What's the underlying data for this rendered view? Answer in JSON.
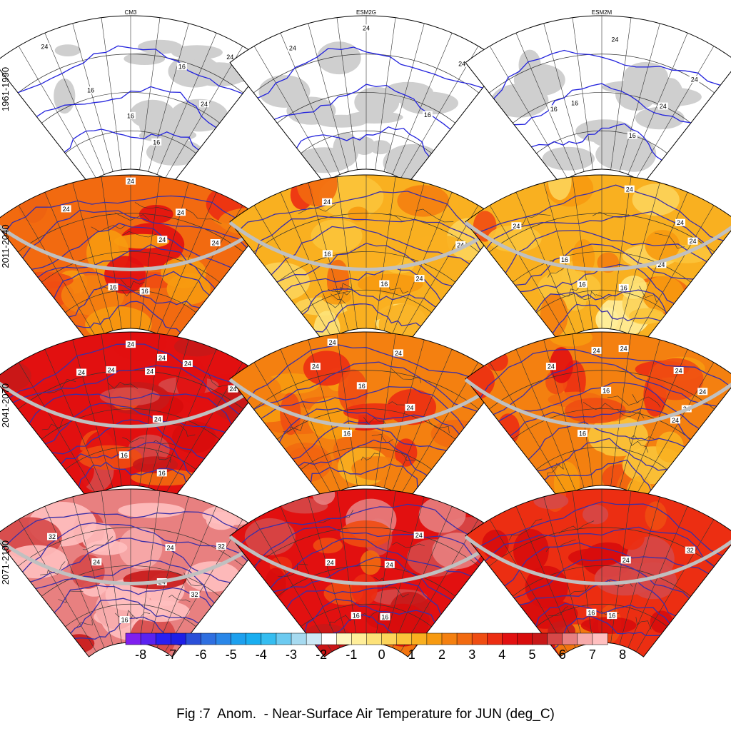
{
  "chart_data": {
    "type": "heatmap",
    "title": "Fig :7  Anom.  - Near-Surface Air Temperature for JUN (deg_C)",
    "columns": [
      "CM3",
      "ESM2G",
      "ESM2M"
    ],
    "rows": [
      "1961-1990",
      "2011-2040",
      "2041-2070",
      "2071-2100"
    ],
    "colorbar": {
      "ticks": [
        "-8",
        "-7",
        "-6",
        "-5",
        "-4",
        "-3",
        "-2",
        "-1",
        "0",
        "1",
        "2",
        "3",
        "4",
        "5",
        "6",
        "7",
        "8"
      ],
      "range": [
        -8,
        8
      ],
      "colors": [
        "#7f1fef",
        "#5a22f0",
        "#2a1ff2",
        "#1e1ee6",
        "#2a4fd8",
        "#2f6fe0",
        "#2a87e8",
        "#1da0ee",
        "#19aef0",
        "#35bdf0",
        "#6ccaf0",
        "#a6daf0",
        "#cde9f6",
        "#ffffff",
        "#fff7c0",
        "#ffee99",
        "#fde278",
        "#fcd45a",
        "#fbc43a",
        "#f9b020",
        "#f79a10",
        "#f48010",
        "#f26a10",
        "#ef4d12",
        "#ec2e12",
        "#e21010",
        "#d80c0c",
        "#c81818",
        "#d64848",
        "#e88080",
        "#f7aaaa",
        "#ffbfbf"
      ]
    },
    "contour_labels": [
      "16",
      "24",
      "32"
    ],
    "panels": [
      {
        "column": "CM3",
        "period": "1961-1990",
        "mean_anomaly": 0,
        "labels": [
          {
            "t": "16",
            "u": 0.5,
            "v": 0.35
          },
          {
            "t": "16",
            "u": 0.7,
            "v": 0.2
          },
          {
            "t": "16",
            "u": 0.3,
            "v": 0.55
          },
          {
            "t": "16",
            "u": 0.72,
            "v": 0.72
          },
          {
            "t": "24",
            "u": 0.88,
            "v": 0.55
          },
          {
            "t": "24",
            "u": 0.88,
            "v": 0.9
          },
          {
            "t": "24",
            "u": 0.18,
            "v": 0.92
          }
        ]
      },
      {
        "column": "ESM2G",
        "period": "1961-1990",
        "mean_anomaly": 0,
        "labels": [
          {
            "t": "16",
            "u": 0.85,
            "v": 0.45
          },
          {
            "t": "24",
            "u": 0.22,
            "v": 0.88
          },
          {
            "t": "24",
            "u": 0.5,
            "v": 0.92
          },
          {
            "t": "24",
            "u": 0.88,
            "v": 0.85
          }
        ]
      },
      {
        "column": "ESM2M",
        "period": "1961-1990",
        "mean_anomaly": 0,
        "labels": [
          {
            "t": "16",
            "u": 0.23,
            "v": 0.45
          },
          {
            "t": "16",
            "u": 0.35,
            "v": 0.45
          },
          {
            "t": "16",
            "u": 0.72,
            "v": 0.25
          },
          {
            "t": "24",
            "u": 0.83,
            "v": 0.5
          },
          {
            "t": "24",
            "u": 0.9,
            "v": 0.75
          },
          {
            "t": "24",
            "u": 0.55,
            "v": 0.85
          }
        ]
      },
      {
        "column": "CM3",
        "period": "2011-2040",
        "mean_anomaly": 3.2,
        "labels": [
          {
            "t": "16",
            "u": 0.38,
            "v": 0.28
          },
          {
            "t": "16",
            "u": 0.6,
            "v": 0.25
          },
          {
            "t": "24",
            "u": 0.65,
            "v": 0.6
          },
          {
            "t": "24",
            "u": 0.88,
            "v": 0.7
          },
          {
            "t": "24",
            "u": 0.25,
            "v": 0.85
          },
          {
            "t": "24",
            "u": 0.7,
            "v": 0.8
          },
          {
            "t": "24",
            "u": 0.5,
            "v": 0.96
          }
        ]
      },
      {
        "column": "ESM2G",
        "period": "2011-2040",
        "mean_anomaly": 1.6,
        "labels": [
          {
            "t": "16",
            "u": 0.62,
            "v": 0.3
          },
          {
            "t": "24",
            "u": 0.82,
            "v": 0.4
          },
          {
            "t": "16",
            "u": 0.3,
            "v": 0.52
          },
          {
            "t": "24",
            "u": 0.92,
            "v": 0.72
          },
          {
            "t": "24",
            "u": 0.35,
            "v": 0.85
          }
        ]
      },
      {
        "column": "ESM2M",
        "period": "2011-2040",
        "mean_anomaly": 1.5,
        "labels": [
          {
            "t": "16",
            "u": 0.37,
            "v": 0.3
          },
          {
            "t": "16",
            "u": 0.65,
            "v": 0.28
          },
          {
            "t": "16",
            "u": 0.3,
            "v": 0.48
          },
          {
            "t": "24",
            "u": 0.82,
            "v": 0.5
          },
          {
            "t": "24",
            "u": 0.15,
            "v": 0.8
          },
          {
            "t": "24",
            "u": 0.82,
            "v": 0.8
          },
          {
            "t": "24",
            "u": 0.9,
            "v": 0.73
          },
          {
            "t": "24",
            "u": 0.6,
            "v": 0.92
          }
        ]
      },
      {
        "column": "CM3",
        "period": "2041-2070",
        "mean_anomaly": 4.8,
        "labels": [
          {
            "t": "16",
            "u": 0.45,
            "v": 0.2
          },
          {
            "t": "16",
            "u": 0.78,
            "v": 0.12
          },
          {
            "t": "24",
            "u": 0.65,
            "v": 0.45
          },
          {
            "t": "24",
            "u": 0.3,
            "v": 0.78
          },
          {
            "t": "24",
            "u": 0.42,
            "v": 0.76
          },
          {
            "t": "24",
            "u": 0.58,
            "v": 0.75
          },
          {
            "t": "24",
            "u": 0.62,
            "v": 0.85
          },
          {
            "t": "24",
            "u": 0.92,
            "v": 0.82
          },
          {
            "t": "24",
            "u": 0.5,
            "v": 0.92
          },
          {
            "t": "24",
            "u": 0.72,
            "v": 0.85
          }
        ]
      },
      {
        "column": "ESM2G",
        "period": "2041-2070",
        "mean_anomaly": 2.8,
        "labels": [
          {
            "t": "16",
            "u": 0.38,
            "v": 0.35
          },
          {
            "t": "24",
            "u": 0.72,
            "v": 0.55
          },
          {
            "t": "16",
            "u": 0.48,
            "v": 0.65
          },
          {
            "t": "24",
            "u": 0.3,
            "v": 0.82
          },
          {
            "t": "24",
            "u": 0.62,
            "v": 0.88
          },
          {
            "t": "24",
            "u": 0.38,
            "v": 0.95
          }
        ]
      },
      {
        "column": "ESM2M",
        "period": "2041-2070",
        "mean_anomaly": 2.6,
        "labels": [
          {
            "t": "16",
            "u": 0.38,
            "v": 0.35
          },
          {
            "t": "16",
            "u": 0.52,
            "v": 0.62
          },
          {
            "t": "24",
            "u": 0.88,
            "v": 0.55
          },
          {
            "t": "24",
            "u": 0.9,
            "v": 0.65
          },
          {
            "t": "24",
            "u": 0.3,
            "v": 0.82
          },
          {
            "t": "24",
            "u": 0.48,
            "v": 0.88
          },
          {
            "t": "24",
            "u": 0.58,
            "v": 0.9
          },
          {
            "t": "24",
            "u": 0.8,
            "v": 0.85
          },
          {
            "t": "24",
            "u": 0.92,
            "v": 0.8
          }
        ]
      },
      {
        "column": "CM3",
        "period": "2071-2100",
        "mean_anomaly": 6.8,
        "labels": [
          {
            "t": "16",
            "u": 0.45,
            "v": 0.15
          },
          {
            "t": "24",
            "u": 0.68,
            "v": 0.42
          },
          {
            "t": "32",
            "u": 0.88,
            "v": 0.42
          },
          {
            "t": "24",
            "u": 0.33,
            "v": 0.55
          },
          {
            "t": "24",
            "u": 0.68,
            "v": 0.65
          },
          {
            "t": "32",
            "u": 0.88,
            "v": 0.78
          },
          {
            "t": "32",
            "u": 0.18,
            "v": 0.8
          }
        ]
      },
      {
        "column": "ESM2G",
        "period": "2071-2100",
        "mean_anomaly": 4.6,
        "labels": [
          {
            "t": "16",
            "u": 0.42,
            "v": 0.18
          },
          {
            "t": "16",
            "u": 0.65,
            "v": 0.18
          },
          {
            "t": "24",
            "u": 0.32,
            "v": 0.55
          },
          {
            "t": "24",
            "u": 0.62,
            "v": 0.52
          },
          {
            "t": "24",
            "u": 0.72,
            "v": 0.75
          }
        ]
      },
      {
        "column": "ESM2M",
        "period": "2071-2100",
        "mean_anomaly": 4.4,
        "labels": [
          {
            "t": "16",
            "u": 0.42,
            "v": 0.2
          },
          {
            "t": "16",
            "u": 0.58,
            "v": 0.18
          },
          {
            "t": "24",
            "u": 0.62,
            "v": 0.55
          },
          {
            "t": "32",
            "u": 0.88,
            "v": 0.75
          }
        ]
      }
    ]
  }
}
